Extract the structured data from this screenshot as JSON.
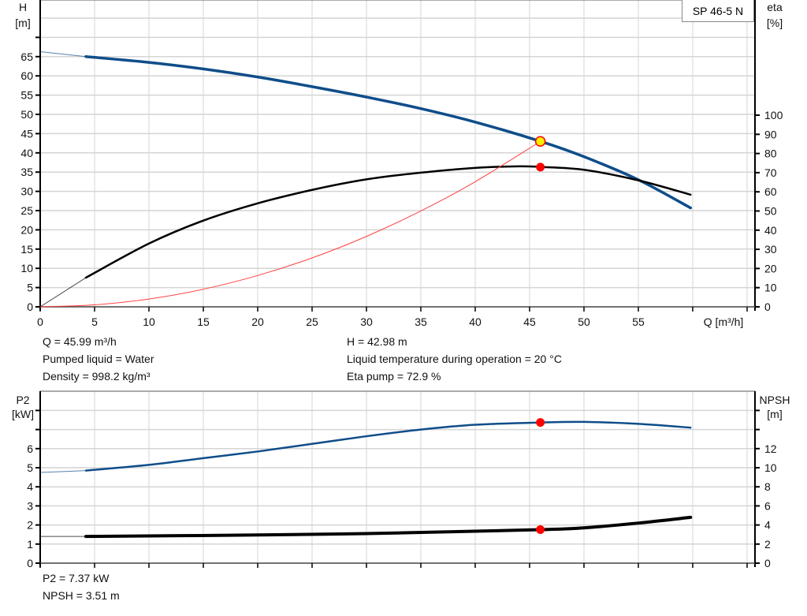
{
  "model_label": "SP 46-5 N",
  "colors": {
    "head": "#0f4d8a",
    "efficiency": "#000000",
    "system": "#ff4040",
    "operating_point": "#ff0000",
    "duty_point_fill": "#ffee00",
    "grid": "#d4d4d4"
  },
  "chart_data": [
    {
      "type": "line",
      "xlabel": "Q [m³/h]",
      "ylabel_left": {
        "name": "H",
        "unit": "[m]"
      },
      "ylabel_right": {
        "name": "eta",
        "unit": "[%]"
      },
      "x_ticks": [
        "0",
        "5",
        "10",
        "15",
        "20",
        "25",
        "30",
        "35",
        "40",
        "45",
        "50",
        "55"
      ],
      "y_left_ticks": [
        "0",
        "5",
        "10",
        "15",
        "20",
        "25",
        "30",
        "35",
        "40",
        "45",
        "50",
        "55",
        "60",
        "65"
      ],
      "y_right_ticks": [
        "0",
        "10",
        "20",
        "30",
        "40",
        "50",
        "60",
        "70",
        "80",
        "90",
        "100"
      ],
      "xlim": [
        0,
        65
      ],
      "ylim_left": [
        0,
        80
      ],
      "ylim_right": [
        0,
        160
      ],
      "grid": true,
      "series": [
        {
          "key": "head",
          "axis": "left",
          "x": [
            0,
            4.2,
            10,
            15,
            20,
            25,
            30,
            35,
            40,
            46,
            50,
            55,
            59.8
          ],
          "y": [
            66.3,
            65,
            63.5,
            61.8,
            59.7,
            57.2,
            54.5,
            51.5,
            48,
            43,
            39,
            33,
            25.7
          ]
        },
        {
          "key": "efficiency",
          "axis": "right",
          "x": [
            0,
            4.2,
            10,
            15,
            20,
            25,
            30,
            35,
            40,
            44,
            46,
            50,
            55,
            59.8
          ],
          "y": [
            0,
            15.2,
            33,
            45,
            54,
            61,
            66.5,
            70,
            72.5,
            73.3,
            73,
            71.5,
            66,
            58.5
          ]
        },
        {
          "key": "system",
          "axis": "left",
          "x": [
            0,
            5,
            10,
            15,
            20,
            25,
            30,
            35,
            40,
            46
          ],
          "y": [
            0,
            0.51,
            2.03,
            4.57,
            8.13,
            12.7,
            18.29,
            24.9,
            32.5,
            42.98
          ]
        }
      ],
      "points": [
        {
          "key": "duty_point",
          "axis": "left",
          "x": 45.99,
          "y": 42.98
        },
        {
          "key": "eta_point",
          "axis": "right",
          "x": 45.99,
          "y": 72.9
        }
      ]
    },
    {
      "type": "line",
      "ylabel_left": {
        "name": "P2",
        "unit": "[kW]"
      },
      "ylabel_right": {
        "name": "NPSH",
        "unit": "[m]"
      },
      "y_left_ticks": [
        "0",
        "1",
        "2",
        "3",
        "4",
        "5",
        "6"
      ],
      "y_right_ticks": [
        "0",
        "2",
        "4",
        "6",
        "8",
        "10",
        "12"
      ],
      "xlim": [
        0,
        65
      ],
      "ylim_left": [
        0,
        9
      ],
      "ylim_right": [
        0,
        18
      ],
      "grid": true,
      "series": [
        {
          "key": "p2",
          "axis": "left",
          "x": [
            0,
            4.2,
            10,
            15,
            20,
            25,
            30,
            35,
            40,
            46,
            50,
            55,
            59.8
          ],
          "y": [
            4.75,
            4.85,
            5.15,
            5.5,
            5.85,
            6.25,
            6.65,
            7.0,
            7.25,
            7.37,
            7.4,
            7.3,
            7.1
          ]
        },
        {
          "key": "npsh",
          "axis": "right",
          "x": [
            0,
            4.2,
            20,
            30,
            40,
            46,
            50,
            55,
            59.8
          ],
          "y": [
            2.8,
            2.8,
            2.95,
            3.1,
            3.35,
            3.51,
            3.7,
            4.2,
            4.8
          ]
        }
      ],
      "points": [
        {
          "key": "p2_point",
          "axis": "left",
          "x": 45.99,
          "y": 7.37
        },
        {
          "key": "npsh_point",
          "axis": "right",
          "x": 45.99,
          "y": 3.51
        }
      ]
    }
  ],
  "info": {
    "q": "Q = 45.99 m³/h",
    "liquid": "Pumped liquid = Water",
    "density": "Density = 998.2 kg/m³",
    "h": "H = 42.98 m",
    "temperature": "Liquid temperature during operation = 20 °C",
    "eta": "Eta pump = 72.9 %",
    "p2": "P2 = 7.37 kW",
    "npsh": "NPSH = 3.51 m"
  }
}
